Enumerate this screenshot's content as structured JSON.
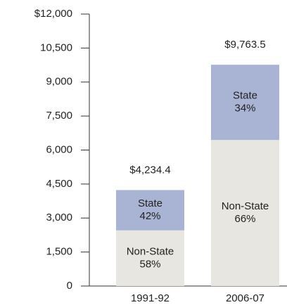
{
  "chart_data": {
    "type": "stacked_bar",
    "categories": [
      "1991-92",
      "2006-07"
    ],
    "series": [
      {
        "name": "Non-State",
        "color": "#e8e6e1",
        "values": [
          2456,
          6444
        ],
        "share_labels": [
          "58%",
          "66%"
        ]
      },
      {
        "name": "State",
        "color": "#a9b4d4",
        "values": [
          1778.4,
          3319.5
        ],
        "share_labels": [
          "42%",
          "34%"
        ]
      }
    ],
    "total_labels": [
      "$4,234.4",
      "$9,763.5"
    ],
    "ylim": [
      0,
      12000
    ],
    "yticks": [
      0,
      {
        "value": 1500,
        "label": "1,500"
      },
      {
        "value": 3000,
        "label": "3,000"
      },
      {
        "value": 4500,
        "label": "4,500"
      },
      {
        "value": 6000,
        "label": "6,000"
      },
      {
        "value": 7500,
        "label": "7,500"
      },
      {
        "value": 9000,
        "label": "9,000"
      },
      {
        "value": 10500,
        "label": "10,500"
      },
      {
        "value": 12000,
        "label": "$12,000"
      }
    ]
  }
}
